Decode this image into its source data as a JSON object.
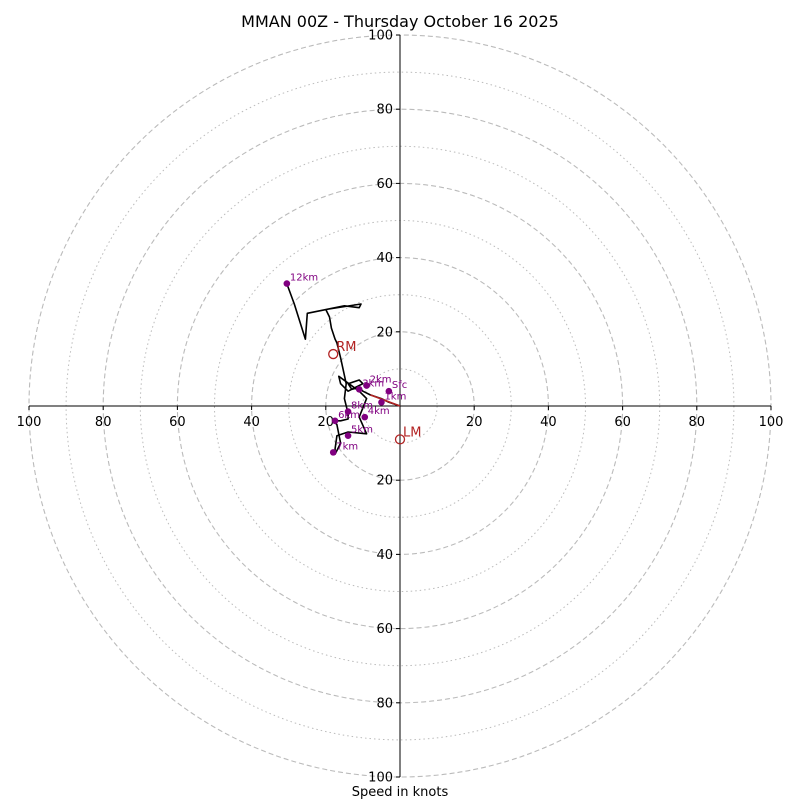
{
  "chart_data": {
    "type": "hodograph",
    "title": "MMAN 00Z - Thursday October 16 2025",
    "xlabel": "Speed in knots",
    "range": [
      -100,
      100
    ],
    "ring_major": [
      20,
      40,
      60,
      80,
      100
    ],
    "ring_minor": [
      10,
      30,
      50,
      70,
      90
    ],
    "tick_values": [
      20,
      40,
      60,
      80,
      100
    ],
    "trace": [
      [
        0,
        0
      ],
      [
        -3,
        1
      ],
      [
        -5,
        2
      ],
      [
        -8,
        3
      ],
      [
        -10,
        4
      ],
      [
        -11,
        5
      ],
      [
        -13,
        4.5
      ],
      [
        -14,
        6
      ],
      [
        -11,
        7
      ],
      [
        -10,
        6
      ],
      [
        -12,
        5
      ],
      [
        -14,
        4
      ],
      [
        -16,
        6
      ],
      [
        -16.5,
        8
      ],
      [
        -11,
        4
      ],
      [
        -9,
        2
      ],
      [
        -11,
        -3
      ],
      [
        -9,
        -7.5
      ],
      [
        -14,
        -7
      ],
      [
        -17,
        -8
      ],
      [
        -17.5,
        -11.5
      ],
      [
        -17.5,
        -13
      ],
      [
        -16,
        -10
      ],
      [
        -17,
        -5
      ],
      [
        -18,
        -4
      ],
      [
        -16,
        -4
      ],
      [
        -14,
        -3.5
      ],
      [
        -14,
        -2
      ],
      [
        -15,
        2
      ],
      [
        -14.5,
        6
      ],
      [
        -16,
        13
      ],
      [
        -17,
        17
      ],
      [
        -17.5,
        18
      ],
      [
        -18.5,
        21
      ],
      [
        -19,
        24
      ],
      [
        -20,
        26
      ],
      [
        -10.5,
        27.5
      ],
      [
        -11,
        26.5
      ],
      [
        -15,
        27
      ],
      [
        -25,
        25
      ],
      [
        -25.5,
        18
      ],
      [
        -28.5,
        27.5
      ],
      [
        -30.5,
        33
      ]
    ],
    "height_markers": [
      {
        "label": "Sfc",
        "u": -3,
        "v": 4
      },
      {
        "label": "1km",
        "u": -5,
        "v": 1
      },
      {
        "label": "2km",
        "u": -9,
        "v": 5.5
      },
      {
        "label": "3km",
        "u": -11,
        "v": 4.5
      },
      {
        "label": "4km",
        "u": -9.5,
        "v": -3
      },
      {
        "label": "5km",
        "u": -14,
        "v": -8
      },
      {
        "label": "6km",
        "u": -17.5,
        "v": -4
      },
      {
        "label": "7km",
        "u": -18,
        "v": -12.5
      },
      {
        "label": "8km",
        "u": -14,
        "v": -1.5
      },
      {
        "label": "12km",
        "u": -30.5,
        "v": 33
      }
    ],
    "storm_motion": [
      {
        "label": "RM",
        "u": -18,
        "v": 14
      },
      {
        "label": "LM",
        "u": 0,
        "v": -9
      }
    ],
    "colors": {
      "trace": "#000000",
      "marker": "#800080",
      "storm_motion": "#b22222",
      "grid": "#bbbbbb"
    }
  }
}
